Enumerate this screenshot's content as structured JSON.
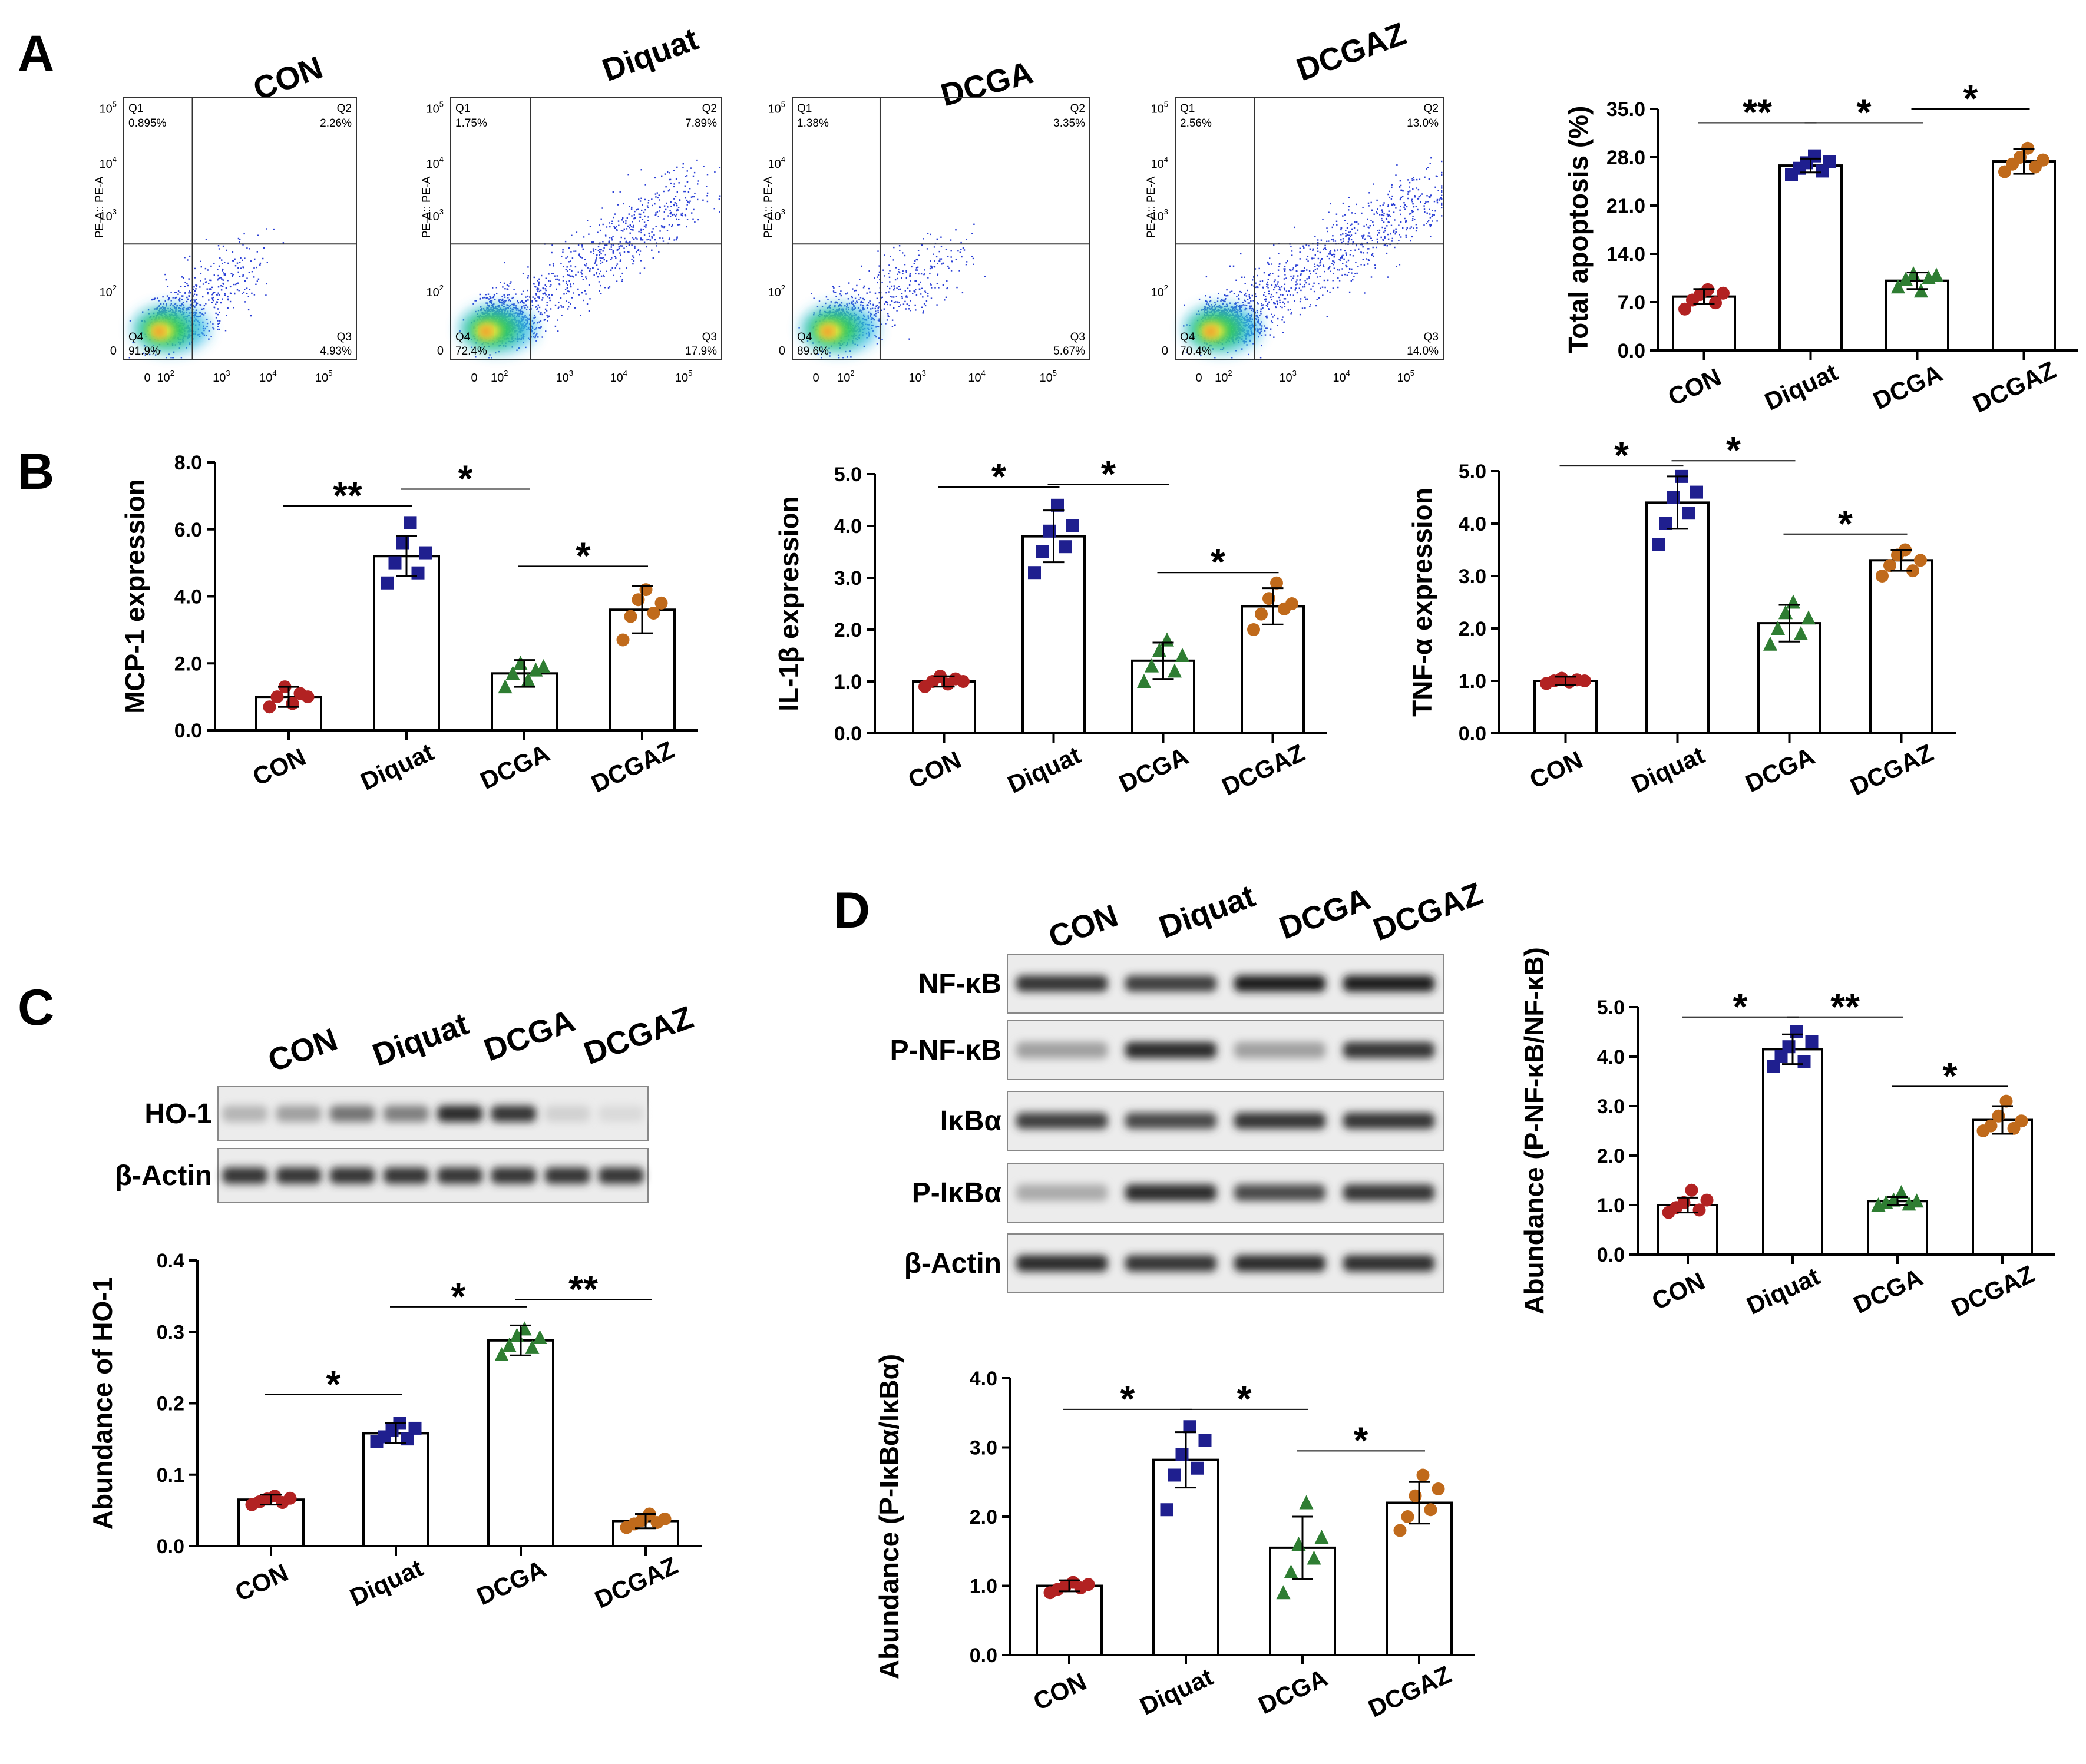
{
  "panel_letters": [
    "A",
    "B",
    "C",
    "D"
  ],
  "colors": {
    "CON": "#b22222",
    "Diquat": "#1f1f8f",
    "DCGA": "#2e7d32",
    "DCGAZ": "#c06a1b",
    "flow_dots": "#2a3fd6"
  },
  "flow_cytometry": [
    {
      "title": "CON",
      "q1_label": "Q1",
      "q1": "0.895%",
      "q2_label": "Q2",
      "q2": "2.26%",
      "q3_label": "Q3",
      "q3": "4.93%",
      "q4_label": "Q4",
      "q4": "91.9%",
      "axis_label": "PE-A:: PE-A",
      "density": 0.5
    },
    {
      "title": "Diquat",
      "q1_label": "Q1",
      "q1": "1.75%",
      "q2_label": "Q2",
      "q2": "7.89%",
      "q3_label": "Q3",
      "q3": "17.9%",
      "q4_label": "Q4",
      "q4": "72.4%",
      "axis_label": "PE-A:: PE-A",
      "density": 1.0
    },
    {
      "title": "DCGA",
      "q1_label": "Q1",
      "q1": "1.38%",
      "q2_label": "Q2",
      "q2": "3.35%",
      "q3_label": "Q3",
      "q3": "5.67%",
      "q4_label": "Q4",
      "q4": "89.6%",
      "axis_label": "PE-A:: PE-A",
      "density": 0.55
    },
    {
      "title": "DCGAZ",
      "q1_label": "Q1",
      "q1": "2.56%",
      "q2_label": "Q2",
      "q2": "13.0%",
      "q3_label": "Q3",
      "q3": "14.0%",
      "q4_label": "Q4",
      "q4": "70.4%",
      "axis_label": "PE-A:: PE-A",
      "density": 1.1
    }
  ],
  "flow_ticks": {
    "base": "10",
    "y_zero": "0",
    "y_exps": [
      "2",
      "3",
      "4",
      "5"
    ],
    "x_zero": "0",
    "x_exps": [
      "2",
      "3",
      "4",
      "5"
    ]
  },
  "chart_data": [
    {
      "id": "apoptosis",
      "type": "bar",
      "ylabel": "Total apoptosis (%)",
      "ylim": [
        0,
        35
      ],
      "yticks": [
        "0.0",
        "7.0",
        "14.0",
        "21.0",
        "28.0",
        "35.0"
      ],
      "categories": [
        "CON",
        "Diquat",
        "DCGA",
        "DCGAZ"
      ],
      "values": [
        7.8,
        26.8,
        10.1,
        27.4
      ],
      "errors": [
        1.1,
        1.0,
        1.2,
        1.8
      ],
      "points": [
        [
          6.0,
          7.3,
          8.1,
          8.8,
          6.9,
          8.3
        ],
        [
          25.5,
          26.4,
          27.2,
          28.2,
          26.0,
          27.4
        ],
        [
          9.2,
          10.3,
          11.1,
          8.6,
          10.5,
          10.9
        ],
        [
          25.9,
          27.0,
          28.0,
          29.3,
          26.6,
          27.6
        ]
      ],
      "significance": [
        {
          "from": 0,
          "to": 1,
          "label": "**",
          "y": 33.0
        },
        {
          "from": 1,
          "to": 2,
          "label": "*",
          "y": 33.0
        },
        {
          "from": 2,
          "to": 3,
          "label": "*",
          "y": 35.0
        }
      ]
    },
    {
      "id": "mcp1",
      "type": "bar",
      "ylabel": "MCP-1 expression",
      "ylim": [
        0,
        8
      ],
      "yticks": [
        "0.0",
        "2.0",
        "4.0",
        "6.0",
        "8.0"
      ],
      "categories": [
        "CON",
        "Diquat",
        "DCGA",
        "DCGAZ"
      ],
      "values": [
        1.0,
        5.2,
        1.7,
        3.6
      ],
      "errors": [
        0.3,
        0.6,
        0.4,
        0.7
      ],
      "points": [
        [
          0.7,
          1.0,
          1.3,
          0.8,
          1.1,
          1.0
        ],
        [
          4.4,
          5.0,
          5.6,
          6.2,
          4.7,
          5.3
        ],
        [
          1.3,
          1.7,
          2.0,
          1.5,
          1.8,
          1.9
        ],
        [
          2.7,
          3.4,
          3.9,
          4.2,
          3.5,
          3.8
        ]
      ],
      "significance": [
        {
          "from": 0,
          "to": 1,
          "label": "**",
          "y": 6.7
        },
        {
          "from": 1,
          "to": 2,
          "label": "*",
          "y": 7.2
        },
        {
          "from": 2,
          "to": 3,
          "label": "*",
          "y": 4.9
        }
      ]
    },
    {
      "id": "il1b",
      "type": "bar",
      "ylabel": "IL-1β expression",
      "ylim": [
        0,
        5
      ],
      "yticks": [
        "0.0",
        "1.0",
        "2.0",
        "3.0",
        "4.0",
        "5.0"
      ],
      "categories": [
        "CON",
        "Diquat",
        "DCGA",
        "DCGAZ"
      ],
      "values": [
        1.0,
        3.8,
        1.4,
        2.45
      ],
      "errors": [
        0.1,
        0.5,
        0.35,
        0.35
      ],
      "points": [
        [
          0.9,
          1.0,
          1.1,
          0.95,
          1.05,
          1.0
        ],
        [
          3.1,
          3.5,
          3.9,
          4.4,
          3.6,
          4.0
        ],
        [
          1.0,
          1.3,
          1.6,
          1.8,
          1.2,
          1.5
        ],
        [
          2.0,
          2.3,
          2.6,
          2.9,
          2.4,
          2.5
        ]
      ],
      "significance": [
        {
          "from": 0,
          "to": 1,
          "label": "*",
          "y": 4.75
        },
        {
          "from": 1,
          "to": 2,
          "label": "*",
          "y": 4.8
        },
        {
          "from": 2,
          "to": 3,
          "label": "*",
          "y": 3.1
        }
      ]
    },
    {
      "id": "tnfa",
      "type": "bar",
      "ylabel": "TNF-α expression",
      "ylim": [
        0,
        5
      ],
      "yticks": [
        "0.0",
        "1.0",
        "2.0",
        "3.0",
        "4.0",
        "5.0"
      ],
      "categories": [
        "CON",
        "Diquat",
        "DCGA",
        "DCGAZ"
      ],
      "values": [
        1.0,
        4.4,
        2.1,
        3.3
      ],
      "errors": [
        0.08,
        0.5,
        0.35,
        0.2
      ],
      "points": [
        [
          0.95,
          1.0,
          1.05,
          0.98,
          1.02,
          1.0
        ],
        [
          3.6,
          4.0,
          4.5,
          4.9,
          4.2,
          4.6
        ],
        [
          1.7,
          2.0,
          2.3,
          2.5,
          1.9,
          2.2
        ],
        [
          3.0,
          3.2,
          3.4,
          3.5,
          3.1,
          3.3
        ]
      ],
      "significance": [
        {
          "from": 0,
          "to": 1,
          "label": "*",
          "y": 5.1
        },
        {
          "from": 1,
          "to": 2,
          "label": "*",
          "y": 5.2
        },
        {
          "from": 2,
          "to": 3,
          "label": "*",
          "y": 3.8
        }
      ]
    },
    {
      "id": "ho1",
      "type": "bar",
      "ylabel": "Abundance of HO-1",
      "ylim": [
        0,
        0.4
      ],
      "yticks": [
        "0.0",
        "0.1",
        "0.2",
        "0.3",
        "0.4"
      ],
      "categories": [
        "CON",
        "Diquat",
        "DCGA",
        "DCGAZ"
      ],
      "values": [
        0.065,
        0.158,
        0.288,
        0.035
      ],
      "errors": [
        0.007,
        0.014,
        0.021,
        0.01
      ],
      "points": [
        [
          0.058,
          0.062,
          0.066,
          0.07,
          0.061,
          0.067
        ],
        [
          0.146,
          0.153,
          0.162,
          0.172,
          0.15,
          0.165
        ],
        [
          0.268,
          0.281,
          0.295,
          0.304,
          0.278,
          0.292
        ],
        [
          0.026,
          0.031,
          0.036,
          0.045,
          0.033,
          0.038
        ]
      ],
      "significance": [
        {
          "from": 0,
          "to": 1,
          "label": "*",
          "y": 0.212
        },
        {
          "from": 1,
          "to": 2,
          "label": "*",
          "y": 0.335
        },
        {
          "from": 2,
          "to": 3,
          "label": "**",
          "y": 0.345
        }
      ]
    },
    {
      "id": "pnfkb",
      "type": "bar",
      "ylabel": "Abundance (P-NF-κB/NF-κB)",
      "ylim": [
        0,
        5
      ],
      "yticks": [
        "0.0",
        "1.0",
        "2.0",
        "3.0",
        "4.0",
        "5.0"
      ],
      "categories": [
        "CON",
        "Diquat",
        "DCGA",
        "DCGAZ"
      ],
      "values": [
        1.0,
        4.15,
        1.08,
        2.72
      ],
      "errors": [
        0.15,
        0.3,
        0.08,
        0.28
      ],
      "points": [
        [
          0.85,
          0.95,
          1.05,
          1.3,
          0.9,
          1.1
        ],
        [
          3.8,
          4.0,
          4.2,
          4.5,
          3.9,
          4.3
        ],
        [
          1.0,
          1.05,
          1.1,
          1.25,
          1.02,
          1.08
        ],
        [
          2.5,
          2.6,
          2.8,
          3.1,
          2.55,
          2.7
        ]
      ],
      "significance": [
        {
          "from": 0,
          "to": 1,
          "label": "*",
          "y": 4.8
        },
        {
          "from": 1,
          "to": 2,
          "label": "**",
          "y": 4.8
        },
        {
          "from": 2,
          "to": 3,
          "label": "*",
          "y": 3.4
        }
      ]
    },
    {
      "id": "pikba",
      "type": "bar",
      "ylabel": "Abundance (P-IκBα/IκBα)",
      "ylim": [
        0,
        4
      ],
      "yticks": [
        "0.0",
        "1.0",
        "2.0",
        "3.0",
        "4.0"
      ],
      "categories": [
        "CON",
        "Diquat",
        "DCGA",
        "DCGAZ"
      ],
      "values": [
        1.0,
        2.82,
        1.55,
        2.2
      ],
      "errors": [
        0.08,
        0.4,
        0.45,
        0.3
      ],
      "points": [
        [
          0.9,
          0.95,
          1.0,
          1.05,
          0.97,
          1.02
        ],
        [
          2.1,
          2.6,
          2.9,
          3.3,
          2.7,
          3.1
        ],
        [
          0.9,
          1.2,
          1.6,
          2.2,
          1.4,
          1.7
        ],
        [
          1.8,
          2.0,
          2.3,
          2.6,
          2.1,
          2.4
        ]
      ],
      "significance": [
        {
          "from": 0,
          "to": 1,
          "label": "*",
          "y": 3.55
        },
        {
          "from": 1,
          "to": 2,
          "label": "*",
          "y": 3.55
        },
        {
          "from": 2,
          "to": 3,
          "label": "*",
          "y": 2.95
        }
      ]
    }
  ],
  "blot_c": {
    "lanes": [
      "CON",
      "Diquat",
      "DCGA",
      "DCGAZ"
    ],
    "rows": [
      {
        "label": "HO-1",
        "intensity": [
          0.25,
          0.35,
          0.55,
          0.5,
          0.9,
          0.85,
          0.12,
          0.08
        ]
      },
      {
        "label": "β-Actin",
        "intensity": [
          0.85,
          0.85,
          0.85,
          0.85,
          0.85,
          0.85,
          0.85,
          0.85
        ]
      }
    ]
  },
  "blot_d": {
    "lanes": [
      "CON",
      "Diquat",
      "DCGA",
      "DCGAZ"
    ],
    "rows": [
      {
        "label": "NF-κB",
        "intensity": [
          0.85,
          0.8,
          0.95,
          0.95
        ]
      },
      {
        "label": "P-NF-κB",
        "intensity": [
          0.35,
          0.9,
          0.35,
          0.85
        ]
      },
      {
        "label": "IκBα",
        "intensity": [
          0.8,
          0.75,
          0.85,
          0.85
        ]
      },
      {
        "label": "P-IκBα",
        "intensity": [
          0.3,
          0.9,
          0.75,
          0.85
        ]
      },
      {
        "label": "β-Actin",
        "intensity": [
          0.9,
          0.85,
          0.9,
          0.88
        ]
      }
    ]
  }
}
